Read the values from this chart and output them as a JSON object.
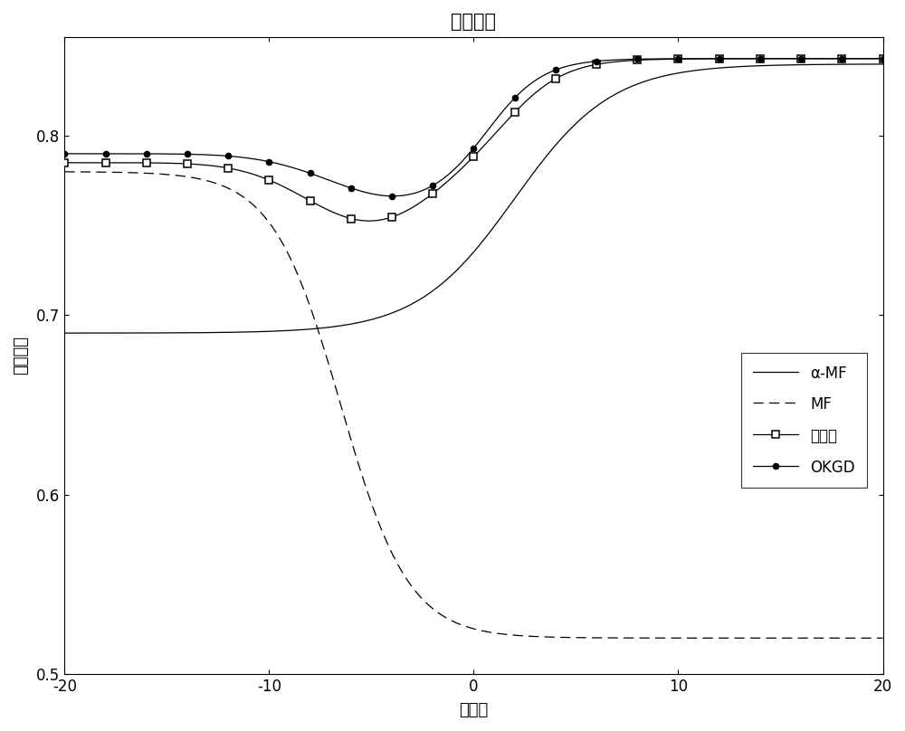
{
  "title": "检测结果",
  "xlabel": "杂噪比",
  "ylabel": "检测概率",
  "xlim": [
    -20,
    20
  ],
  "ylim": [
    0.5,
    0.855
  ],
  "yticks": [
    0.5,
    0.6,
    0.7,
    0.8
  ],
  "xticks": [
    -20,
    -10,
    0,
    10,
    20
  ],
  "legend_entries": [
    "α-MF",
    "MF",
    "本发明",
    "OKGD"
  ],
  "background_color": "#ffffff",
  "title_fontsize": 15,
  "label_fontsize": 13,
  "tick_fontsize": 12,
  "legend_fontsize": 12
}
